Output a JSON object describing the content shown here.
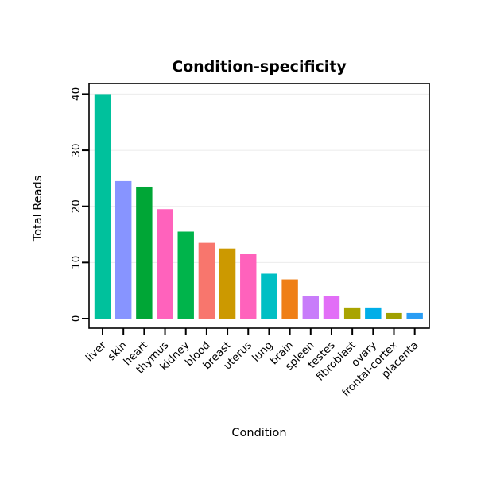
{
  "chart_data": {
    "type": "bar",
    "title": "Condition-specificity",
    "xlabel": "Condition",
    "ylabel": "Total Reads",
    "categories": [
      "liver",
      "skin",
      "heart",
      "thymus",
      "kidney",
      "blood",
      "breast",
      "uterus",
      "lung",
      "brain",
      "spleen",
      "testes",
      "fibroblast",
      "ovary",
      "frontal-cortex",
      "placenta"
    ],
    "values": [
      40,
      24.5,
      23.5,
      19.5,
      15.5,
      13.5,
      12.5,
      11.5,
      8,
      7,
      4,
      4,
      2,
      2,
      1,
      1
    ],
    "colors": [
      "#00C19C",
      "#8794FF",
      "#00A636",
      "#FF62BC",
      "#00B44B",
      "#F8766D",
      "#CC9900",
      "#FF62BC",
      "#00BFC4",
      "#EF7F16",
      "#C87CFA",
      "#E26EF7",
      "#A9A400",
      "#00AEE8",
      "#A0A000",
      "#2A9DF4"
    ],
    "yticks": [
      0,
      10,
      20,
      30,
      40
    ],
    "ylim": [
      0,
      40
    ],
    "grid": true,
    "legend": "none",
    "background": "#FFFFFF",
    "panel_border_color": "#000000",
    "gridline_color": "#EBEBEB"
  }
}
